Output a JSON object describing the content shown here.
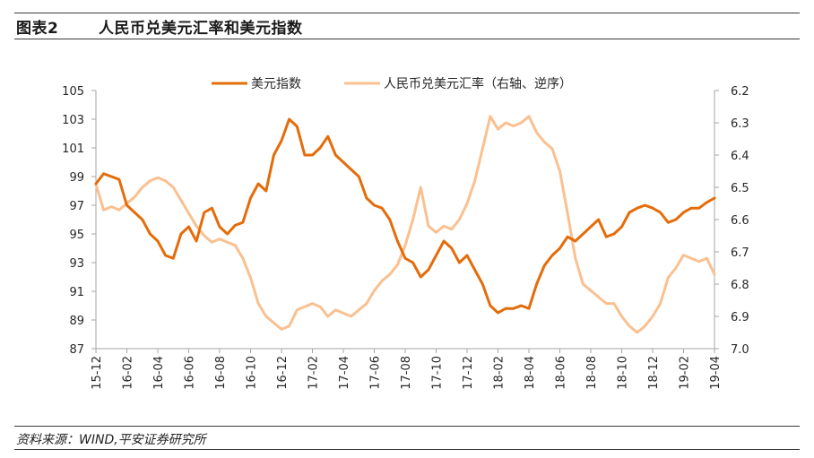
{
  "figure": {
    "number_label": "图表2",
    "title": "人民币兑美元汇率和美元指数",
    "source": "资料来源：WIND,平安证券研究所"
  },
  "chart_data": {
    "type": "line",
    "title": "人民币兑美元汇率和美元指数",
    "xlabel": "",
    "ylabel": "",
    "y2label": "",
    "x_tick_labels": [
      "15-12",
      "16-02",
      "16-04",
      "16-06",
      "16-08",
      "16-10",
      "16-12",
      "17-02",
      "17-04",
      "17-06",
      "17-08",
      "17-10",
      "17-12",
      "18-02",
      "18-04",
      "18-06",
      "18-08",
      "18-10",
      "18-12",
      "19-02",
      "19-04"
    ],
    "x_range_months": [
      "2015-12",
      "2019-04"
    ],
    "ylim": [
      87,
      105
    ],
    "y_ticks": [
      87,
      89,
      91,
      93,
      95,
      97,
      99,
      101,
      103,
      105
    ],
    "y_tick_labels": [
      "87",
      "89",
      "91",
      "93",
      "95",
      "97",
      "99",
      "101",
      "103",
      "105"
    ],
    "y2lim": [
      6.2,
      7.0
    ],
    "y2_reversed": true,
    "y2_ticks": [
      6.2,
      6.3,
      6.4,
      6.5,
      6.6,
      6.7,
      6.8,
      6.9,
      7.0
    ],
    "y2_tick_labels": [
      "6.2",
      "6.3",
      "6.4",
      "6.5",
      "6.6",
      "6.7",
      "6.8",
      "6.9",
      "7.0"
    ],
    "grid": false,
    "legend_position": "top-center",
    "x_step": "half-month",
    "series": [
      {
        "name": "美元指数",
        "axis": "left",
        "color": "#E46C0A",
        "values": [
          98.5,
          99.2,
          99.0,
          98.8,
          97.0,
          96.5,
          96.0,
          95.0,
          94.5,
          93.5,
          93.3,
          95.0,
          95.5,
          94.5,
          96.5,
          96.8,
          95.5,
          95.0,
          95.6,
          95.8,
          97.5,
          98.5,
          98.0,
          100.5,
          101.5,
          103.0,
          102.5,
          100.5,
          100.5,
          101.0,
          101.8,
          100.5,
          100.0,
          99.5,
          99.0,
          97.5,
          97.0,
          96.8,
          96.0,
          94.5,
          93.3,
          93.0,
          92.0,
          92.5,
          93.5,
          94.5,
          94.0,
          93.0,
          93.5,
          92.5,
          91.5,
          90.0,
          89.5,
          89.8,
          89.8,
          90.0,
          89.8,
          91.5,
          92.8,
          93.5,
          94.0,
          94.8,
          94.5,
          95.0,
          95.5,
          96.0,
          94.8,
          95.0,
          95.5,
          96.5,
          96.8,
          97.0,
          96.8,
          96.5,
          95.8,
          96.0,
          96.5,
          96.8,
          96.8,
          97.2,
          97.5
        ]
      },
      {
        "name": "人民币兑美元汇率（右轴、逆序）",
        "axis": "right",
        "color": "#FAC090",
        "values": [
          6.49,
          6.57,
          6.56,
          6.57,
          6.55,
          6.53,
          6.5,
          6.48,
          6.47,
          6.48,
          6.5,
          6.54,
          6.58,
          6.62,
          6.65,
          6.67,
          6.66,
          6.67,
          6.68,
          6.72,
          6.78,
          6.86,
          6.9,
          6.92,
          6.94,
          6.93,
          6.88,
          6.87,
          6.86,
          6.87,
          6.9,
          6.88,
          6.89,
          6.9,
          6.88,
          6.86,
          6.82,
          6.79,
          6.77,
          6.74,
          6.68,
          6.6,
          6.5,
          6.62,
          6.64,
          6.62,
          6.63,
          6.6,
          6.55,
          6.48,
          6.38,
          6.28,
          6.32,
          6.3,
          6.31,
          6.3,
          6.28,
          6.33,
          6.36,
          6.38,
          6.45,
          6.58,
          6.72,
          6.8,
          6.82,
          6.84,
          6.86,
          6.86,
          6.9,
          6.93,
          6.95,
          6.93,
          6.9,
          6.86,
          6.78,
          6.75,
          6.71,
          6.72,
          6.73,
          6.72,
          6.77
        ]
      }
    ]
  }
}
